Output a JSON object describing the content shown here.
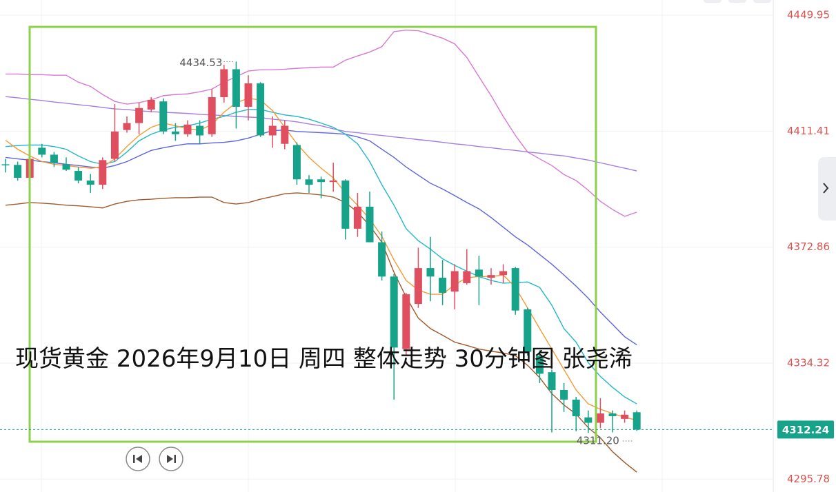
{
  "chart_data": {
    "type": "candlestick",
    "title": "现货黄金 2026年9月10日 周四 整体走势 30分钟图 张尧浠",
    "up_color": "#e04f5f",
    "down_color": "#16a38a",
    "open": [
      4400.4,
      4400.2,
      4395.9,
      4405.9,
      4403.6,
      4400.4,
      4398.2,
      4395.0,
      4393.6,
      4402.2,
      4411.8,
      4414.1,
      4418.6,
      4421.3,
      4411.3,
      4410.4,
      4413.2,
      4410.4,
      4422.7,
      4432.0,
      4419.5,
      4427.3,
      4410.0,
      4407.2,
      4406.8,
      4395.4,
      4395.4,
      4394.5,
      4395.0,
      4379.0,
      4386.3,
      4374.5,
      4363.1,
      4339.0,
      4354.0,
      4365.9,
      4362.7,
      4358.1,
      4360.9,
      4365.4,
      4362.7,
      4363.6,
      4365.9,
      4352.2,
      4336.8,
      4331.3,
      4325.4,
      4322.2,
      4316.3,
      4314.5,
      4317.6,
      4315.8,
      4318.0
    ],
    "high": [
      4402.2,
      4401.3,
      4403.2,
      4407.2,
      4404.5,
      4402.7,
      4399.5,
      4397.2,
      4402.7,
      4420.4,
      4416.3,
      4420.9,
      4422.7,
      4422.3,
      4414.1,
      4415.0,
      4415.0,
      4425.4,
      4433.5,
      4434.53,
      4430.0,
      4427.7,
      4416.3,
      4415.0,
      4407.7,
      4396.8,
      4396.3,
      4400.9,
      4395.4,
      4390.9,
      4391.3,
      4378.1,
      4364.0,
      4357.7,
      4372.7,
      4376.3,
      4368.6,
      4367.2,
      4372.2,
      4370.0,
      4365.9,
      4367.2,
      4366.3,
      4352.7,
      4338.6,
      4332.2,
      4327.7,
      4323.1,
      4318.6,
      4322.7,
      4318.6,
      4318.6,
      4318.6
    ],
    "low": [
      4397.7,
      4395.0,
      4395.4,
      4402.7,
      4399.5,
      4398.2,
      4394.1,
      4390.9,
      4392.2,
      4401.3,
      4410.9,
      4410.4,
      4417.7,
      4410.4,
      4408.2,
      4409.5,
      4407.2,
      4409.5,
      4420.9,
      4412.3,
      4415.0,
      4409.5,
      4405.9,
      4405.4,
      4393.6,
      4390.9,
      4389.1,
      4391.3,
      4375.4,
      4376.3,
      4374.5,
      4361.8,
      4322.2,
      4336.8,
      4352.7,
      4354.9,
      4353.6,
      4352.2,
      4360.4,
      4353.6,
      4360.4,
      4360.9,
      4350.4,
      4336.8,
      4327.7,
      4311.3,
      4318.1,
      4311.7,
      4311.2,
      4312.7,
      4311.3,
      4314.5,
      4311.8
    ],
    "close": [
      4400.3,
      4395.9,
      4402.2,
      4403.6,
      4400.9,
      4398.6,
      4395.0,
      4393.6,
      4401.8,
      4411.3,
      4414.1,
      4419.1,
      4421.8,
      4411.3,
      4410.4,
      4413.6,
      4410.0,
      4422.7,
      4432.0,
      4419.5,
      4427.3,
      4410.0,
      4413.2,
      4413.2,
      4395.4,
      4393.6,
      4394.5,
      4395.0,
      4379.0,
      4386.3,
      4374.5,
      4363.1,
      4339.5,
      4357.2,
      4365.9,
      4363.1,
      4357.7,
      4364.9,
      4364.9,
      4363.1,
      4363.6,
      4364.9,
      4351.8,
      4338.1,
      4330.8,
      4325.4,
      4322.2,
      4316.7,
      4314.5,
      4317.6,
      4316.7,
      4317.2,
      4312.24
    ],
    "series": [
      {
        "color": "#d878d2",
        "values": [
          4430.4,
          4430.4,
          4430.2,
          4430.2,
          4430.0,
          4430.0,
          4427.7,
          4426.3,
          4423.6,
          4421.3,
          4420.4,
          4420.9,
          4421.8,
          4423.2,
          4423.6,
          4423.8,
          4424.5,
          4425.4,
          4427.7,
          4429.5,
          4431.4,
          4431.8,
          4431.8,
          4432.0,
          4432.3,
          4432.5,
          4432.7,
          4432.7,
          4435.0,
          4436.4,
          4437.7,
          4439.5,
          4444.5,
          4445.0,
          4444.8,
          4443.6,
          4442.3,
          4440.4,
          4435.9,
          4429.5,
          4423.2,
          4416.3,
          4410.0,
          4404.5,
          4402.2,
          4400.0,
          4397.0,
          4395.0,
          4391.8,
          4388.1,
          4385.4,
          4383.1,
          4384.5
        ]
      },
      {
        "color": "#a47ce6",
        "values": [
          4422.9,
          4422.5,
          4422.0,
          4421.6,
          4421.1,
          4420.7,
          4420.2,
          4419.8,
          4419.3,
          4418.8,
          4418.6,
          4418.2,
          4417.9,
          4417.7,
          4417.5,
          4417.3,
          4417.0,
          4416.8,
          4416.6,
          4416.3,
          4416.1,
          4415.9,
          4415.4,
          4415.0,
          4414.5,
          4413.8,
          4413.2,
          4412.2,
          4411.3,
          4410.9,
          4410.4,
          4410.0,
          4409.5,
          4409.1,
          4408.6,
          4408.2,
          4407.7,
          4407.2,
          4406.8,
          4406.3,
          4405.9,
          4405.4,
          4405.0,
          4404.5,
          4404.1,
          4403.6,
          4403.2,
          4402.5,
          4401.8,
          4400.9,
          4400.0,
          4399.1,
          4398.2
        ]
      },
      {
        "color": "#5c64e0",
        "values": [
          4402.7,
          4402.2,
          4401.8,
          4401.3,
          4400.9,
          4400.4,
          4400.0,
          4399.5,
          4399.1,
          4400.0,
          4401.3,
          4403.2,
          4405.0,
          4405.9,
          4406.6,
          4407.2,
          4407.2,
          4407.5,
          4407.7,
          4408.2,
          4409.1,
          4410.4,
          4411.6,
          4411.8,
          4411.3,
          4411.1,
          4410.9,
          4410.7,
          4410.4,
          4409.5,
          4408.2,
          4405.4,
          4402.7,
          4399.5,
          4396.8,
          4394.1,
          4392.2,
          4390.0,
          4387.7,
          4385.6,
          4382.7,
          4379.5,
          4376.3,
          4373.6,
          4370.4,
          4367.2,
          4363.6,
          4359.9,
          4355.9,
          4351.3,
          4347.2,
          4343.1,
          4340.4
        ]
      },
      {
        "color": "#1fb8c9",
        "values": [
          4406.3,
          4406.6,
          4406.8,
          4406.8,
          4406.3,
          4405.4,
          4403.2,
          4401.3,
          4400.4,
          4401.3,
          4404.5,
          4408.2,
          4410.4,
          4411.8,
          4412.7,
          4413.2,
          4414.1,
          4415.4,
          4416.3,
          4417.7,
          4418.6,
          4418.6,
          4417.7,
          4416.8,
          4416.3,
          4415.4,
          4414.1,
          4412.7,
          4410.4,
          4407.2,
          4401.3,
          4393.6,
          4386.8,
          4379.0,
          4375.0,
          4372.2,
          4369.0,
          4366.8,
          4364.9,
          4363.1,
          4361.8,
          4360.9,
          4361.1,
          4361.3,
          4359.5,
          4353.6,
          4345.8,
          4341.3,
          4334.5,
          4329.9,
          4326.3,
          4323.1,
          4320.8
        ]
      },
      {
        "color": "#f39a34",
        "values": [
          4408.4,
          4405.4,
          4403.2,
          4401.3,
          4400.4,
          4400.0,
          4399.5,
          4399.1,
          4399.5,
          4402.2,
          4406.3,
          4410.0,
          4412.7,
          4414.1,
          4413.2,
          4412.2,
          4411.8,
          4413.6,
          4417.7,
          4420.9,
          4422.3,
          4421.8,
          4418.2,
          4412.7,
          4407.2,
          4402.7,
          4399.1,
          4395.9,
          4390.9,
          4386.8,
          4382.2,
          4376.5,
          4368.6,
          4361.8,
          4358.6,
          4357.2,
          4357.2,
          4360.4,
          4362.7,
          4363.1,
          4363.1,
          4363.6,
          4359.5,
          4352.7,
          4345.8,
          4339.0,
          4332.2,
          4325.4,
          4320.8,
          4319.0,
          4317.6,
          4316.3,
          4315.4
        ]
      },
      {
        "color": "#a0582a",
        "values": [
          4386.8,
          4387.2,
          4387.7,
          4387.5,
          4387.2,
          4386.8,
          4386.6,
          4386.3,
          4385.9,
          4387.2,
          4388.1,
          4388.6,
          4388.8,
          4389.1,
          4389.3,
          4389.3,
          4389.5,
          4389.5,
          4387.7,
          4387.2,
          4387.7,
          4388.8,
          4389.7,
          4390.6,
          4390.9,
          4390.6,
          4390.2,
          4389.5,
          4387.7,
          4384.5,
          4380.0,
          4374.5,
          4364.5,
          4356.3,
          4349.3,
          4345.8,
          4343.6,
          4341.3,
          4340.2,
          4339.0,
          4338.3,
          4337.7,
          4336.8,
          4333.6,
          4329.5,
          4324.2,
          4320.4,
          4317.4,
          4312.9,
          4309.5,
          4304.9,
          4301.3,
          4298.1
        ]
      }
    ],
    "ylim": [
      4291.5,
      4455
    ],
    "yticks": [
      4449.95,
      4411.41,
      4372.86,
      4334.32,
      4295.78
    ],
    "grid": true,
    "max_label": 4434.53,
    "min_label": {
      "value": 4311.2,
      "label": "4311.20"
    },
    "current_price": 4312.24,
    "current_color": "#16a38a"
  }
}
